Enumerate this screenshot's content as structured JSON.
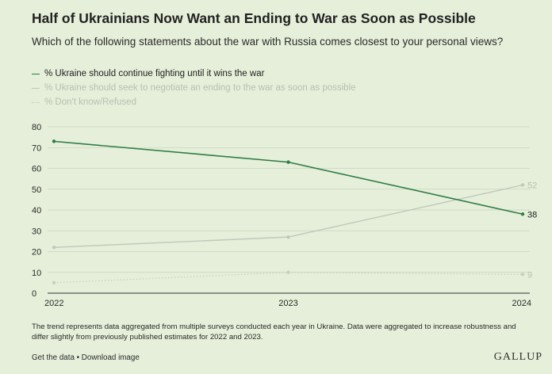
{
  "title": "Half of Ukrainians Now Want an Ending to War as Soon as Possible",
  "subtitle": "Which of the following statements about the war with Russia comes closest to your personal views?",
  "colors": {
    "fighting": "#2e7d45",
    "negotiate": "#c2c8bd",
    "dontknow": "#c9cec4",
    "grid": "#c9d3bf",
    "background": "#e6efd9"
  },
  "chart_data": {
    "type": "line",
    "title": "Half of Ukrainians Now Want an Ending to War as Soon as Possible",
    "xlabel": "",
    "ylabel": "",
    "categories": [
      "2022",
      "2023",
      "2024"
    ],
    "ylim": [
      0,
      80
    ],
    "yticks": [
      "0",
      "10",
      "20",
      "30",
      "40",
      "50",
      "60",
      "70",
      "80"
    ],
    "grid": true,
    "legend": "top-left",
    "series": [
      {
        "name": "% Ukraine should continue fighting until it wins the war",
        "values": [
          73,
          63,
          38
        ],
        "end_label": "38",
        "style": "solid-dark"
      },
      {
        "name": "% Ukraine should seek to negotiate an ending to the war as soon as possible",
        "values": [
          22,
          27,
          52
        ],
        "end_label": "52",
        "style": "solid-light"
      },
      {
        "name": "% Don't know/Refused",
        "values": [
          5,
          10,
          9
        ],
        "end_label": "9",
        "style": "dotted-light"
      }
    ]
  },
  "note": "The trend represents data aggregated from multiple surveys conducted each year in Ukraine. Data were aggregated to increase robustness and differ slightly from previously published estimates for 2022 and 2023.",
  "footer": "Get the data • Download image",
  "logo": "GALLUP"
}
